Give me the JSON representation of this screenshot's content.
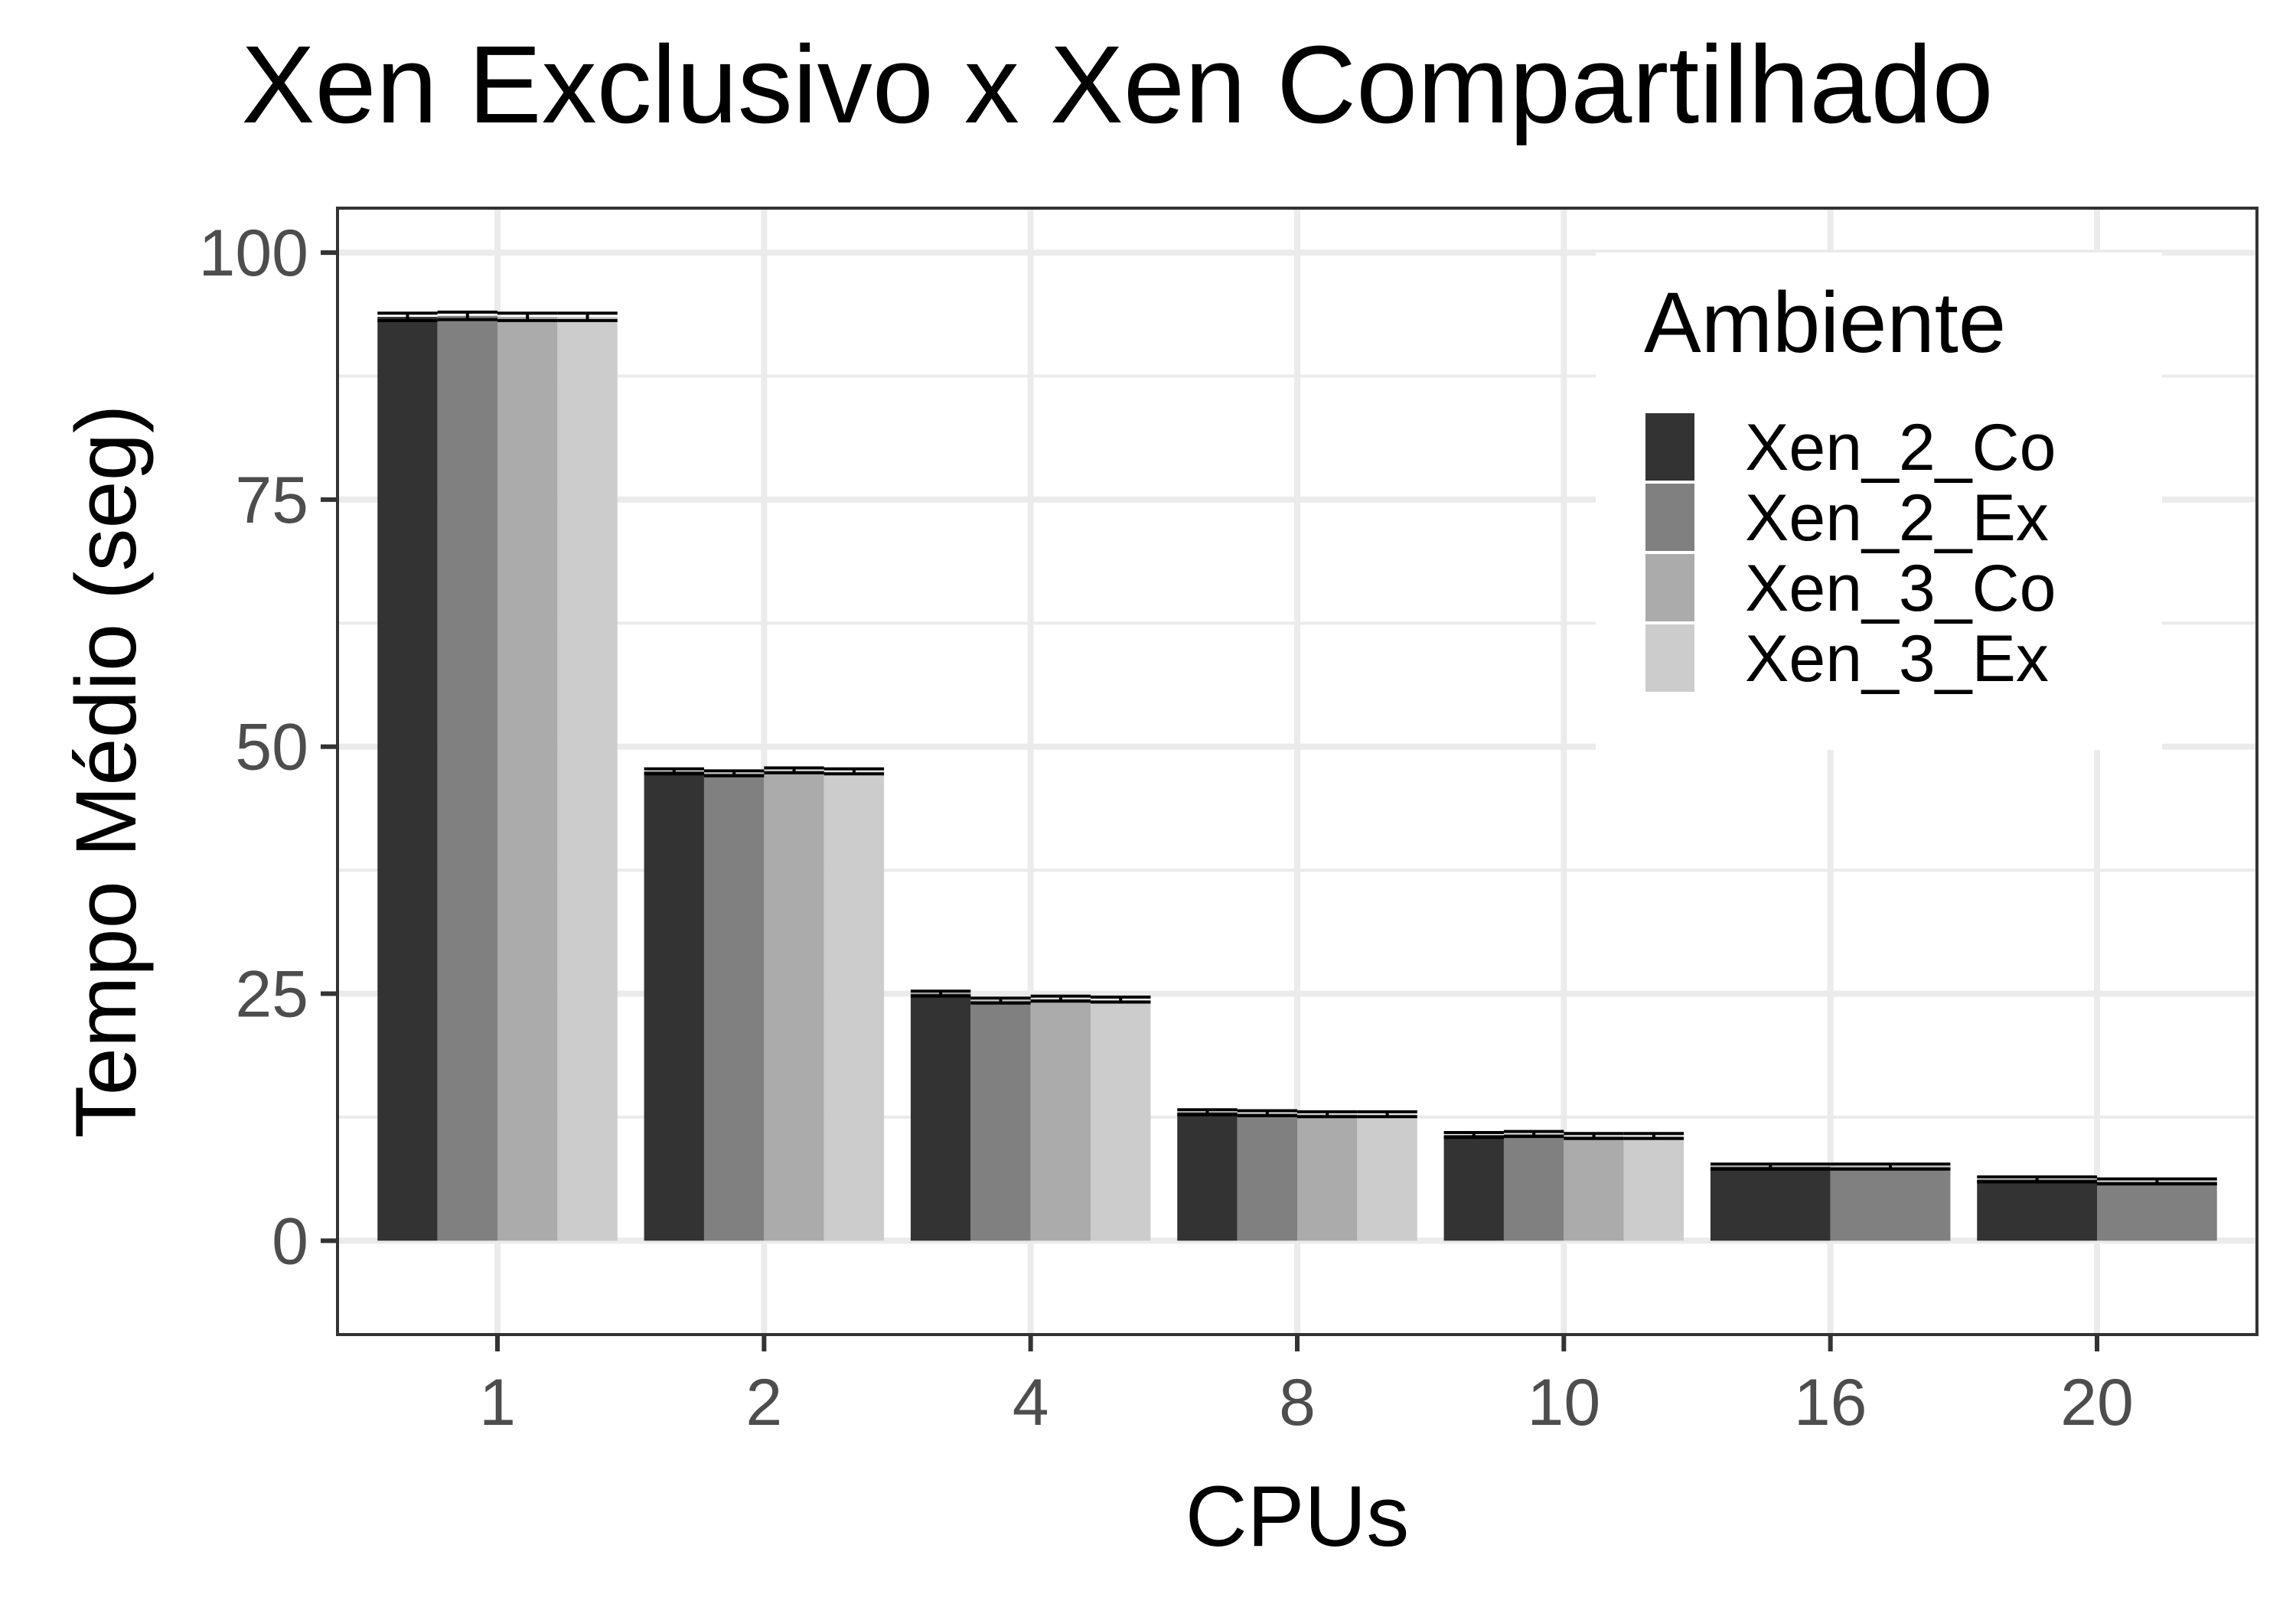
{
  "chart_data": {
    "type": "bar",
    "title": "Xen Exclusivo x Xen Compartilhado",
    "xlabel": "CPUs",
    "ylabel": "Tempo Médio (seg)",
    "categories": [
      "1",
      "2",
      "4",
      "8",
      "10",
      "16",
      "20"
    ],
    "ylim": [
      -9.5,
      104.5
    ],
    "yticks": [
      0,
      25,
      50,
      75,
      100
    ],
    "grid": true,
    "legend": {
      "title": "Ambiente",
      "position": "top-right"
    },
    "series": [
      {
        "name": "Xen_2_Co",
        "color": "#333333",
        "values": [
          93.5,
          47.5,
          25.0,
          13.0,
          10.7,
          7.5,
          6.2
        ]
      },
      {
        "name": "Xen_2_Ex",
        "color": "#808080",
        "values": [
          93.6,
          47.3,
          24.3,
          12.9,
          10.8,
          7.5,
          6.0
        ]
      },
      {
        "name": "Xen_3_Co",
        "color": "#ababab",
        "values": [
          93.5,
          47.6,
          24.5,
          12.8,
          10.6,
          null,
          null
        ]
      },
      {
        "name": "Xen_3_Ex",
        "color": "#cccccc",
        "values": [
          93.5,
          47.5,
          24.4,
          12.8,
          10.6,
          null,
          null
        ]
      }
    ]
  }
}
